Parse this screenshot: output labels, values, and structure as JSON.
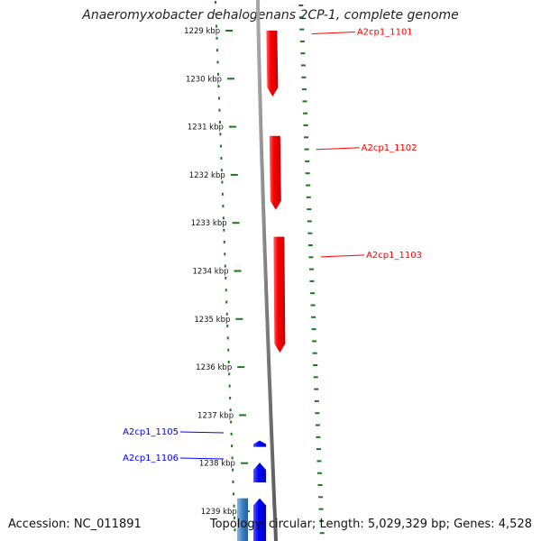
{
  "title": "Anaeromyxobacter dehalogenans 2CP-1, complete genome",
  "footer": {
    "accession_prefix": "Accession: ",
    "accession": "NC_011891",
    "topology_prefix": "Topology: ",
    "topology": "circular",
    "length_prefix": "; Length: ",
    "length": "5,029,329 bp",
    "genes_prefix": "; Genes: ",
    "genes": "4,528"
  },
  "ruler": {
    "ticks": [
      {
        "label": "1229 kbp",
        "kbp": 1229
      },
      {
        "label": "1230 kbp",
        "kbp": 1230
      },
      {
        "label": "1231 kbp",
        "kbp": 1231
      },
      {
        "label": "1232 kbp",
        "kbp": 1232
      },
      {
        "label": "1233 kbp",
        "kbp": 1233
      },
      {
        "label": "1234 kbp",
        "kbp": 1234
      },
      {
        "label": "1235 kbp",
        "kbp": 1235
      },
      {
        "label": "1236 kbp",
        "kbp": 1236
      },
      {
        "label": "1237 kbp",
        "kbp": 1237
      },
      {
        "label": "1238 kbp",
        "kbp": 1238
      },
      {
        "label": "1239 kbp",
        "kbp": 1239
      }
    ]
  },
  "genes": [
    {
      "label": "A2cp1_1101",
      "start_kbp": 1229.0,
      "end_kbp": 1230.37,
      "strand": "forward",
      "color": "#ff0000"
    },
    {
      "label": "A2cp1_1102",
      "start_kbp": 1231.19,
      "end_kbp": 1232.73,
      "strand": "forward",
      "color": "#ff0000"
    },
    {
      "label": "A2cp1_1103",
      "start_kbp": 1233.29,
      "end_kbp": 1235.7,
      "strand": "forward",
      "color": "#ff0000"
    },
    {
      "label": "A2cp1_1105",
      "start_kbp": 1237.53,
      "end_kbp": 1237.66,
      "strand": "reverse",
      "color": "#0000ff"
    },
    {
      "label": "A2cp1_1106",
      "start_kbp": 1237.99,
      "end_kbp": 1238.4,
      "strand": "reverse",
      "color": "#0000ff"
    },
    {
      "label": "",
      "start_kbp": 1238.73,
      "end_kbp": 1239.7,
      "strand": "reverse",
      "color": "#0000ff"
    },
    {
      "label": "",
      "start_kbp": 1238.73,
      "end_kbp": 1239.7,
      "strand": "reverse",
      "color": "#3a7fc4"
    }
  ],
  "colors": {
    "forward_gene": "#ff0000",
    "reverse_gene": "#0000ff",
    "backbone": "#808080",
    "dots": "#1a7a1a"
  }
}
